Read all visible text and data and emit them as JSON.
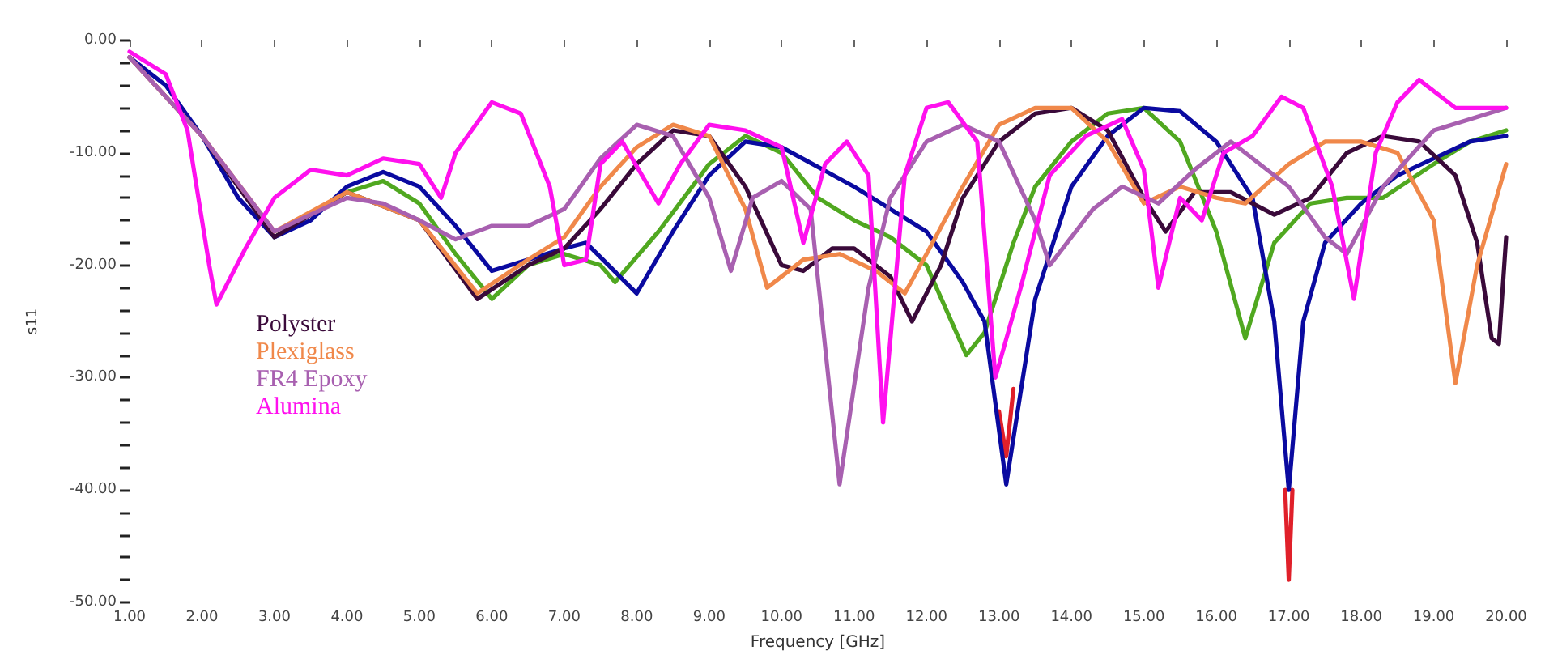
{
  "chart_data": {
    "type": "line",
    "xlabel": "Frequency [GHz]",
    "ylabel": "s11",
    "xlim": [
      1,
      20
    ],
    "ylim": [
      -50,
      0
    ],
    "xticks": [
      {
        "value": 1,
        "label": "1.00"
      },
      {
        "value": 2,
        "label": "2.00"
      },
      {
        "value": 3,
        "label": "3.00"
      },
      {
        "value": 4,
        "label": "4.00"
      },
      {
        "value": 5,
        "label": "5.00"
      },
      {
        "value": 6,
        "label": "6.00"
      },
      {
        "value": 7,
        "label": "7.00"
      },
      {
        "value": 8,
        "label": "8.00"
      },
      {
        "value": 9,
        "label": "9.00"
      },
      {
        "value": 10,
        "label": "10.00"
      },
      {
        "value": 11,
        "label": "11.00"
      },
      {
        "value": 12,
        "label": "12.00"
      },
      {
        "value": 13,
        "label": "13.00"
      },
      {
        "value": 14,
        "label": "14.00"
      },
      {
        "value": 15,
        "label": "15.00"
      },
      {
        "value": 16,
        "label": "16.00"
      },
      {
        "value": 17,
        "label": "17.00"
      },
      {
        "value": 18,
        "label": "18.00"
      },
      {
        "value": 19,
        "label": "19.00"
      },
      {
        "value": 20,
        "label": "20.00"
      }
    ],
    "yticks": [
      {
        "value": 0,
        "label": "0.00"
      },
      {
        "value": -2,
        "label": null
      },
      {
        "value": -4,
        "label": null
      },
      {
        "value": -6,
        "label": null
      },
      {
        "value": -8,
        "label": null
      },
      {
        "value": -10,
        "label": "-10.00"
      },
      {
        "value": -12,
        "label": null
      },
      {
        "value": -14,
        "label": null
      },
      {
        "value": -16,
        "label": null
      },
      {
        "value": -18,
        "label": null
      },
      {
        "value": -20,
        "label": "-20.00"
      },
      {
        "value": -22,
        "label": null
      },
      {
        "value": -24,
        "label": null
      },
      {
        "value": -26,
        "label": null
      },
      {
        "value": -28,
        "label": null
      },
      {
        "value": -30,
        "label": "-30.00"
      },
      {
        "value": -32,
        "label": null
      },
      {
        "value": -34,
        "label": null
      },
      {
        "value": -36,
        "label": null
      },
      {
        "value": -38,
        "label": null
      },
      {
        "value": -40,
        "label": "-40.00"
      },
      {
        "value": -42,
        "label": null
      },
      {
        "value": -44,
        "label": null
      },
      {
        "value": -46,
        "label": null
      },
      {
        "value": -48,
        "label": null
      },
      {
        "value": -50,
        "label": "-50.00"
      }
    ],
    "grid": false,
    "legend": "left",
    "marker": "none",
    "line_style": "solid",
    "series": [
      {
        "color": "#e0202a",
        "x": [
          13.0,
          13.1,
          13.2,
          15,
          16.95,
          17.0,
          17.05
        ],
        "values": [
          -33,
          -37,
          -31,
          null,
          -40,
          -48,
          -40
        ]
      },
      {
        "color": "#50a820",
        "x": [
          3,
          4,
          4.5,
          5,
          5.5,
          6,
          6.5,
          7,
          7.5,
          7.7,
          8.3,
          9,
          9.5,
          10,
          10.5,
          11,
          11.5,
          12,
          12.55,
          12.8,
          13.2,
          13.5,
          14,
          14.5,
          15,
          15.5,
          16,
          16.4,
          16.8,
          17.3,
          17.8,
          18.3,
          19,
          19.5,
          20
        ],
        "values": [
          -17.5,
          -13.5,
          -12.5,
          -14.5,
          -19,
          -23,
          -20,
          -19,
          -20,
          -21.5,
          -17,
          -11,
          -8.5,
          -10,
          -14,
          -16,
          -17.5,
          -20,
          -28,
          -26,
          -18,
          -13,
          -9,
          -6.5,
          -6,
          -9,
          -17,
          -26.5,
          -18,
          -14.5,
          -14,
          -14,
          -11,
          -9,
          -8
        ]
      },
      {
        "color": "#0a0aa0",
        "x": [
          1,
          1.5,
          2,
          2.5,
          3,
          3.5,
          4,
          4.5,
          5,
          5.5,
          6,
          6.5,
          7,
          7.3,
          8,
          8.5,
          9,
          9.5,
          10,
          11,
          12,
          12.5,
          12.8,
          13.1,
          13.5,
          14,
          14.5,
          15,
          15.5,
          16,
          16.5,
          16.8,
          17,
          17.2,
          17.5,
          18,
          18.5,
          19,
          19.5,
          20
        ],
        "values": [
          -1.5,
          -4,
          -8.5,
          -14,
          -17.5,
          -16,
          -13,
          -11.7,
          -13,
          -16.5,
          -20.5,
          -19.5,
          -18.5,
          -18,
          -22.5,
          -17,
          -12,
          -9,
          -9.5,
          -13,
          -17,
          -21.5,
          -25,
          -39.5,
          -23,
          -13,
          -8.5,
          -6,
          -6.3,
          -9,
          -14,
          -25,
          -40,
          -25,
          -18,
          -14.5,
          -12,
          -10.5,
          -9,
          -8.5
        ]
      },
      {
        "name": "Polyster",
        "color": "#3a0a3a",
        "x": [
          1,
          2,
          3,
          4,
          5,
          5.8,
          6.5,
          7,
          7.5,
          8,
          8.5,
          9,
          9.5,
          10,
          10.3,
          10.7,
          11,
          11.5,
          11.8,
          12.2,
          12.5,
          13,
          13.5,
          14,
          14.5,
          15,
          15.3,
          15.7,
          16.2,
          16.8,
          17.3,
          17.8,
          18.3,
          18.8,
          19.3,
          19.6,
          19.8,
          19.9,
          20
        ],
        "values": [
          -1.5,
          -8.5,
          -17.5,
          -13.5,
          -16,
          -23,
          -20,
          -18.5,
          -15,
          -11,
          -8,
          -8.5,
          -13,
          -20,
          -20.5,
          -18.5,
          -18.5,
          -21,
          -25,
          -20,
          -14,
          -9,
          -6.5,
          -6,
          -8,
          -14,
          -17,
          -13.5,
          -13.5,
          -15.5,
          -14,
          -10,
          -8.5,
          -9,
          -12,
          -18,
          -26.5,
          -27,
          -17.5
        ]
      },
      {
        "name": "Plexiglass",
        "color": "#f0884a",
        "x": [
          1,
          2,
          3,
          4,
          5,
          5.8,
          6.5,
          7,
          7.5,
          8,
          8.5,
          9,
          9.5,
          9.8,
          10.3,
          10.8,
          11.3,
          11.7,
          12,
          12.5,
          13,
          13.5,
          14,
          14.5,
          15,
          15.5,
          16,
          16.4,
          17,
          17.5,
          18,
          18.5,
          19,
          19.3,
          19.6,
          20
        ],
        "values": [
          -1.5,
          -8.5,
          -17,
          -13.5,
          -16,
          -22.5,
          -19.5,
          -17.5,
          -13,
          -9.5,
          -7.5,
          -8.5,
          -15,
          -22,
          -19.5,
          -19,
          -20.5,
          -22.5,
          -19,
          -13,
          -7.5,
          -6,
          -6,
          -9,
          -14.5,
          -13,
          -14,
          -14.5,
          -11,
          -9,
          -9,
          -10,
          -16,
          -30.5,
          -20,
          -11
        ]
      },
      {
        "name": "FR4 Epoxy",
        "color": "#a860b0",
        "x": [
          1,
          2,
          3,
          4,
          4.5,
          5,
          5.5,
          6,
          6.5,
          7,
          7.5,
          8,
          8.5,
          9,
          9.3,
          9.6,
          10,
          10.4,
          10.8,
          11.2,
          11.5,
          12,
          12.5,
          13,
          13.5,
          13.7,
          14.3,
          14.7,
          15.2,
          15.7,
          16.2,
          17,
          17.5,
          17.8,
          18.3,
          19,
          19.5,
          20
        ],
        "values": [
          -1.5,
          -8.5,
          -17,
          -14,
          -14.5,
          -16,
          -17.7,
          -16.5,
          -16.5,
          -15,
          -10.5,
          -7.5,
          -8.5,
          -14,
          -20.5,
          -14,
          -12.5,
          -15,
          -39.5,
          -22,
          -14,
          -9,
          -7.5,
          -9,
          -16,
          -20,
          -15,
          -13,
          -14.5,
          -11.5,
          -9,
          -13,
          -17.5,
          -19,
          -13,
          -8,
          -7,
          -6
        ]
      },
      {
        "name": "Alumina",
        "color": "#ff10ee",
        "x": [
          1,
          1.5,
          1.8,
          2.1,
          2.2,
          2.6,
          3,
          3.5,
          4,
          4.5,
          5,
          5.3,
          5.5,
          6,
          6.4,
          6.8,
          7,
          7.3,
          7.5,
          7.8,
          8.3,
          8.6,
          9,
          9.5,
          10,
          10.3,
          10.6,
          10.9,
          11.2,
          11.4,
          11.7,
          12,
          12.3,
          12.7,
          12.95,
          13.3,
          13.7,
          14.2,
          14.7,
          15,
          15.2,
          15.5,
          15.8,
          16.1,
          16.5,
          16.9,
          17.2,
          17.6,
          17.9,
          18.2,
          18.5,
          18.8,
          19.3,
          20
        ],
        "values": [
          -1,
          -3,
          -8,
          -20,
          -23.5,
          -18.5,
          -14,
          -11.5,
          -12,
          -10.5,
          -11,
          -14,
          -10,
          -5.5,
          -6.5,
          -13,
          -20,
          -19.5,
          -11,
          -9,
          -14.5,
          -11,
          -7.5,
          -8,
          -9.5,
          -18,
          -11,
          -9,
          -12,
          -34,
          -12,
          -6,
          -5.5,
          -9,
          -30,
          -22,
          -12,
          -8.5,
          -7,
          -11.5,
          -22,
          -14,
          -16,
          -10,
          -8.5,
          -5,
          -6,
          -13,
          -23,
          -10,
          -5.5,
          -3.5,
          -6,
          -6
        ]
      }
    ]
  }
}
